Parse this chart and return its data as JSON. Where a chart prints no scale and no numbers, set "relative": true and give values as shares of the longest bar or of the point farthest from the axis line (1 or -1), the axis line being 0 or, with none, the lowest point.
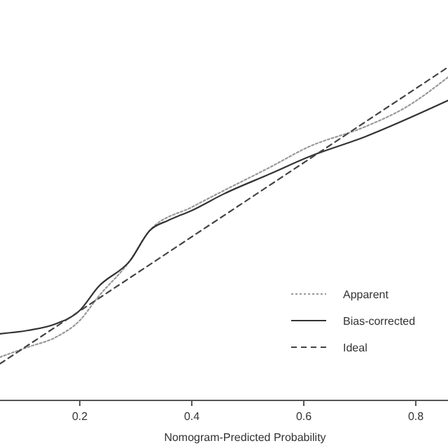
{
  "chart_data": {
    "type": "line",
    "xlabel": "Nomogram-Predicted Probability",
    "relative": true,
    "xlim": [
      0.0575,
      0.8575
    ],
    "xticks": [
      0.2,
      0.4,
      0.6,
      0.8
    ],
    "legend": "right",
    "series": [
      {
        "name": "Apparent",
        "color": "#999999",
        "line_style": "dotted",
        "x": [
          0.0575,
          0.1075,
          0.1575,
          0.2,
          0.2325,
          0.29,
          0.325,
          0.4,
          0.4575,
          0.54,
          0.6075,
          0.7075,
          0.7825,
          0.8575
        ],
        "values": [
          0.13,
          0.16,
          0.19,
          0.24,
          0.31,
          0.42,
          0.51,
          0.58,
          0.63,
          0.7,
          0.76,
          0.82,
          0.88,
          0.97
        ]
      },
      {
        "name": "Bias-corrected",
        "color": "#333333",
        "line_style": "solid",
        "x": [
          0.0575,
          0.1075,
          0.1575,
          0.2,
          0.2325,
          0.29,
          0.325,
          0.3575,
          0.4,
          0.4575,
          0.54,
          0.6075,
          0.7075,
          0.8575
        ],
        "values": [
          0.2,
          0.21,
          0.23,
          0.27,
          0.34,
          0.42,
          0.51,
          0.54,
          0.57,
          0.62,
          0.68,
          0.73,
          0.79,
          0.9
        ]
      },
      {
        "name": "Ideal",
        "color": "#444444",
        "line_style": "dashed",
        "x": [
          0.0575,
          0.8575
        ],
        "values": [
          0.11,
          1.0
        ]
      }
    ]
  }
}
